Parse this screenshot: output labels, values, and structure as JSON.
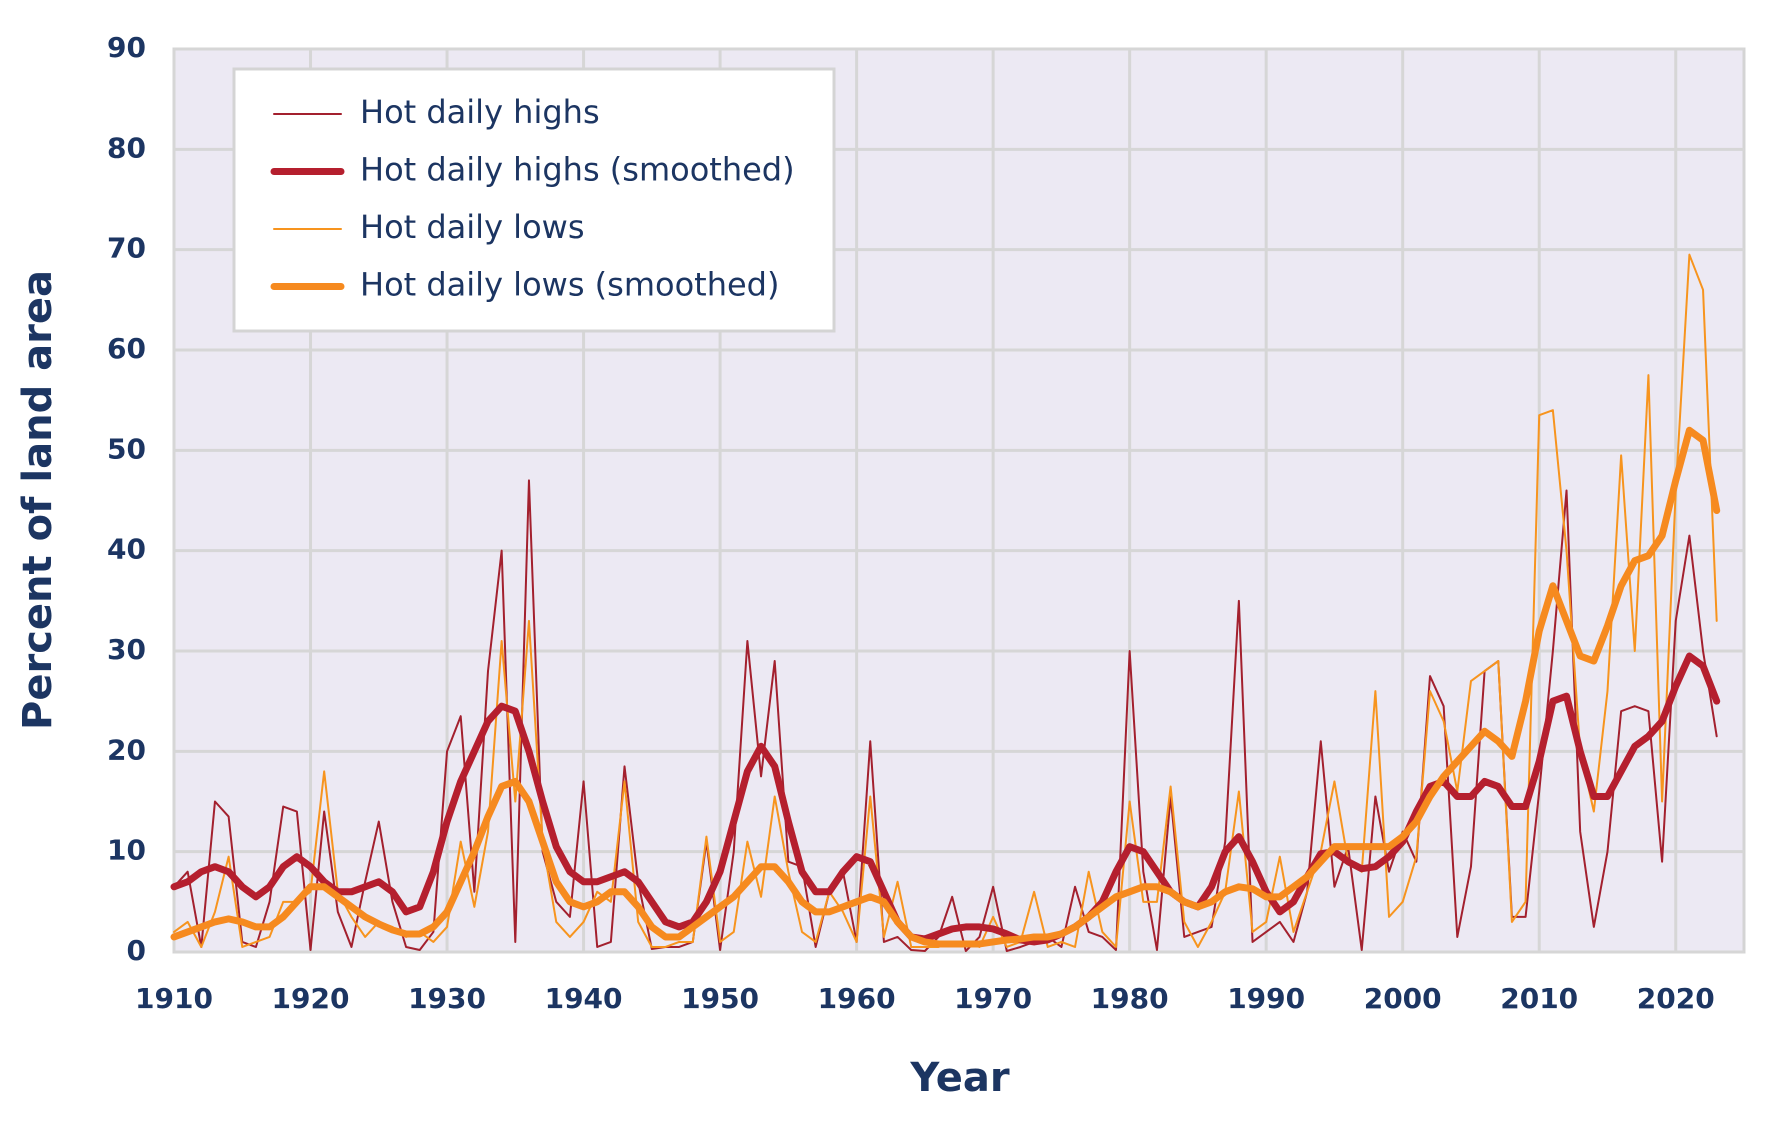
{
  "chart_data": {
    "type": "line",
    "xlabel": "Year",
    "ylabel": "Percent of land area",
    "x": [
      1910,
      1911,
      1912,
      1913,
      1914,
      1915,
      1916,
      1917,
      1918,
      1919,
      1920,
      1921,
      1922,
      1923,
      1924,
      1925,
      1926,
      1927,
      1928,
      1929,
      1930,
      1931,
      1932,
      1933,
      1934,
      1935,
      1936,
      1937,
      1938,
      1939,
      1940,
      1941,
      1942,
      1943,
      1944,
      1945,
      1946,
      1947,
      1948,
      1949,
      1950,
      1951,
      1952,
      1953,
      1954,
      1955,
      1956,
      1957,
      1958,
      1959,
      1960,
      1961,
      1962,
      1963,
      1964,
      1965,
      1966,
      1967,
      1968,
      1969,
      1970,
      1971,
      1972,
      1973,
      1974,
      1975,
      1976,
      1977,
      1978,
      1979,
      1980,
      1981,
      1982,
      1983,
      1984,
      1985,
      1986,
      1987,
      1988,
      1989,
      1990,
      1991,
      1992,
      1993,
      1994,
      1995,
      1996,
      1997,
      1998,
      1999,
      2000,
      2001,
      2002,
      2003,
      2004,
      2005,
      2006,
      2007,
      2008,
      2009,
      2010,
      2011,
      2012,
      2013,
      2014,
      2015,
      2016,
      2017,
      2018,
      2019,
      2020,
      2021,
      2022,
      2023
    ],
    "series": [
      {
        "name": "Hot daily highs",
        "color": "#a3202e",
        "linewidth": 2,
        "values": [
          6.5,
          8,
          0.5,
          15,
          13.5,
          1,
          0.5,
          5,
          14.5,
          14,
          0.2,
          14,
          4,
          0.5,
          7,
          13,
          5,
          0.5,
          0.2,
          2,
          20,
          23.5,
          6,
          28,
          40,
          1,
          47,
          10,
          5,
          3.5,
          17,
          0.5,
          1,
          18.5,
          7,
          0.3,
          0.5,
          0.5,
          1,
          11,
          0.2,
          10,
          31,
          17.5,
          29,
          9,
          8.5,
          0.5,
          6,
          8,
          1,
          21,
          1,
          1.5,
          0.2,
          0.1,
          1.5,
          5.5,
          0.1,
          1.5,
          6.5,
          0.1,
          0.5,
          1,
          1.5,
          0.5,
          6.5,
          2,
          1.5,
          0.2,
          30,
          8,
          0.2,
          15.5,
          1.5,
          2,
          2.5,
          11,
          35,
          1,
          2,
          3,
          1,
          6,
          21,
          6.5,
          10.5,
          0.2,
          15.5,
          8,
          12,
          9,
          27.5,
          24.5,
          1.5,
          8.5,
          28,
          29,
          3.5,
          3.5,
          16,
          30,
          46,
          12,
          2.5,
          10,
          24,
          24.5,
          24,
          9,
          33,
          41.5,
          30,
          21.5
        ]
      },
      {
        "name": "Hot daily highs (smoothed)",
        "color": "#b51f2e",
        "linewidth": 7,
        "values": [
          6.5,
          7,
          8,
          8.5,
          8,
          6.5,
          5.5,
          6.5,
          8.5,
          9.5,
          8.5,
          7,
          6,
          6,
          6.5,
          7,
          6,
          4,
          4.5,
          8,
          13,
          17,
          20,
          23,
          24.5,
          24,
          20,
          15,
          10.5,
          8,
          7,
          7,
          7.5,
          8,
          7,
          5,
          3,
          2.5,
          3,
          5,
          8,
          13,
          18,
          20.5,
          18.5,
          13,
          8,
          6,
          6,
          8,
          9.5,
          9,
          6,
          3,
          1.5,
          1.3,
          1.8,
          2.3,
          2.5,
          2.5,
          2.3,
          1.8,
          1.2,
          1,
          1.2,
          1.8,
          2.5,
          3.5,
          5,
          8,
          10.5,
          10,
          8,
          6,
          5,
          4.5,
          6.5,
          10,
          11.5,
          9,
          6,
          4,
          5,
          7.5,
          9.8,
          10,
          9,
          8.3,
          8.5,
          9.5,
          11,
          14,
          16.5,
          17,
          15.5,
          15.5,
          17,
          16.5,
          14.5,
          14.5,
          19,
          25,
          25.5,
          20,
          15.5,
          15.5,
          18,
          20.5,
          21.5,
          23,
          26.5,
          29.5,
          28.5,
          25
        ]
      },
      {
        "name": "Hot daily lows",
        "color": "#f7941e",
        "linewidth": 2,
        "values": [
          2,
          3,
          0.5,
          4,
          9.5,
          0.5,
          1,
          1.5,
          5,
          5,
          6,
          18,
          6,
          3.5,
          1.5,
          3,
          2.5,
          1.5,
          2,
          1,
          2.5,
          11,
          4.5,
          12,
          31,
          15,
          33,
          11,
          3,
          1.5,
          3,
          6,
          5,
          17,
          3,
          0.5,
          0.5,
          1,
          1,
          11.5,
          1,
          2,
          11,
          5.5,
          15.5,
          8,
          2,
          1,
          6,
          4,
          1,
          15.5,
          1.5,
          7,
          0.5,
          0.5,
          0.5,
          1,
          1,
          0.5,
          3.5,
          0.5,
          1,
          6,
          0.5,
          1,
          0.5,
          8,
          2,
          0.5,
          15,
          5,
          5,
          16.5,
          3,
          0.5,
          3,
          6,
          16,
          2,
          3,
          9.5,
          2,
          6,
          10,
          17,
          9,
          8,
          26,
          3.5,
          5,
          9.5,
          26,
          23,
          16,
          27,
          28,
          29,
          3,
          5,
          53.5,
          54,
          40,
          20,
          14,
          26,
          49.5,
          30,
          57.5,
          15,
          46,
          69.5,
          66,
          33
        ]
      },
      {
        "name": "Hot daily lows (smoothed)",
        "color": "#f68a1f",
        "linewidth": 7,
        "values": [
          1.5,
          2,
          2.5,
          3,
          3.3,
          3,
          2.5,
          2.5,
          3.5,
          5,
          6.5,
          6.5,
          5.5,
          4.5,
          3.5,
          2.8,
          2.2,
          1.8,
          1.8,
          2.5,
          4,
          7,
          10,
          13.5,
          16.5,
          17,
          15,
          11,
          7,
          5,
          4.5,
          5,
          6,
          6,
          4.5,
          2.5,
          1.5,
          1.5,
          2.5,
          3.5,
          4.5,
          5.5,
          7,
          8.5,
          8.5,
          7,
          5,
          4,
          4,
          4.5,
          5,
          5.5,
          5,
          3,
          1.5,
          1,
          0.8,
          0.8,
          0.8,
          0.8,
          1,
          1.2,
          1.3,
          1.5,
          1.5,
          1.8,
          2.5,
          3.5,
          4.5,
          5.5,
          6,
          6.5,
          6.5,
          6,
          5,
          4.5,
          5,
          6,
          6.5,
          6.3,
          5.5,
          5.5,
          6.5,
          7.5,
          9,
          10.5,
          10.5,
          10.5,
          10.5,
          10.5,
          11.5,
          13,
          15.5,
          17.5,
          19,
          20.5,
          22,
          21,
          19.5,
          25,
          32,
          36.5,
          33,
          29.5,
          29,
          32.5,
          36.5,
          39,
          39.5,
          41.5,
          47,
          52,
          51,
          44
        ]
      }
    ],
    "xlim": [
      1910,
      2025
    ],
    "xticks": [
      1910,
      1920,
      1930,
      1940,
      1950,
      1960,
      1970,
      1980,
      1990,
      2000,
      2010,
      2020
    ],
    "ylim": [
      0,
      90
    ],
    "yticks": [
      0,
      10,
      20,
      30,
      40,
      50,
      60,
      70,
      80,
      90
    ],
    "grid": true,
    "legend": "upper left"
  }
}
